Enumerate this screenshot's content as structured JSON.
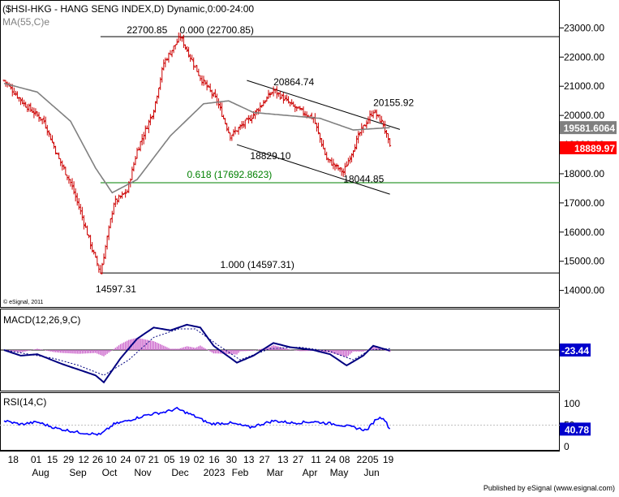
{
  "header": {
    "title": "($HSI-HKG - HANG SENG INDEX,D) Dynamic,0:00-24:00",
    "ma_label": "MA(55,C)e",
    "copyright": "© eSignal, 2011",
    "footer": "Published by eSignal (www.esignal.com)"
  },
  "colors": {
    "background": "#ffffff",
    "price_bars": "#cc0000",
    "ma_line": "#808080",
    "fib_line": "#008000",
    "macd": "#000080",
    "signal": "#000080",
    "histogram": "#cc66cc",
    "rsi": "#0000ff",
    "last_price_badge": "#ff0000",
    "ma_badge": "#808080",
    "indicator_badge": "#0000cc",
    "frame": "#000000"
  },
  "chart_data": [
    {
      "type": "bar",
      "name": "price",
      "title": "($HSI-HKG - HANG SENG INDEX,D) Dynamic,0:00-24:00",
      "ylim": [
        13600,
        23400
      ],
      "yticks": [
        "23000.00",
        "22000.00",
        "21000.00",
        "20000.00",
        "19000.00",
        "18000.00",
        "17000.00",
        "16000.00",
        "15000.00",
        "14000.00"
      ],
      "x_day_labels": [
        "18",
        "01",
        "15",
        "29",
        "12",
        "26",
        "10",
        "24",
        "07",
        "21",
        "05",
        "19",
        "02",
        "16",
        "30",
        "13",
        "27",
        "13",
        "27",
        "11",
        "24",
        "08",
        "22",
        "05",
        "19"
      ],
      "x_month_labels": [
        "Aug",
        "Sep",
        "Oct",
        "Nov",
        "Dec",
        "2023",
        "Feb",
        "Mar",
        "Apr",
        "May",
        "Jun"
      ],
      "ohlc_anchors": {
        "x_index": [
          0,
          12,
          24,
          33,
          40,
          46,
          53,
          58,
          66,
          74,
          80,
          90,
          96,
          106,
          118,
          128,
          136,
          148,
          162,
          174,
          186,
          194,
          204,
          214,
          222,
          228,
          232
        ],
        "close": [
          21200,
          20400,
          19800,
          18500,
          17700,
          16700,
          15400,
          14597.31,
          17000,
          17400,
          18800,
          20200,
          21800,
          22700.85,
          21300,
          20500,
          19300,
          19900,
          20864.74,
          20300,
          19900,
          18500,
          18044.85,
          19400,
          20155.92,
          19700,
          18889.97
        ]
      },
      "ma": {
        "label": "MA(55,C)e",
        "last_value": "19581.6064",
        "x_index": [
          0,
          20,
          40,
          55,
          65,
          80,
          100,
          120,
          135,
          150,
          170,
          190,
          210,
          232
        ],
        "values": [
          21100,
          20800,
          19800,
          18200,
          17350,
          17800,
          19300,
          20400,
          20500,
          20100,
          20000,
          19900,
          19500,
          19581.6
        ]
      },
      "last_price": "18889.97",
      "annotations": [
        {
          "text": "22700.85",
          "x_index": 104,
          "price": 22700.85
        },
        {
          "text": "0.000 (22700.85)",
          "x_index": 130,
          "price": 22700.85
        },
        {
          "text": "20864.74",
          "x_index": 162,
          "price": 20864.74
        },
        {
          "text": "20155.92",
          "x_index": 222,
          "price": 20155.92
        },
        {
          "text": "18829.10",
          "x_index": 148,
          "price": 18829.1
        },
        {
          "text": "18044.85",
          "x_index": 204,
          "price": 18044.85
        },
        {
          "text": "0.618 (17692.8623)",
          "x_index": 110,
          "price": 17692.8623
        },
        {
          "text": "1.000 (14597.31)",
          "x_index": 130,
          "price": 14597.31
        },
        {
          "text": "14597.31",
          "x_index": 58,
          "price": 14597.31
        }
      ],
      "hlines": [
        {
          "name": "fib-0",
          "price": 22700.85,
          "from_x_index": 58,
          "color": "#000000"
        },
        {
          "name": "fib-0.618",
          "price": 17692.8623,
          "from_x_index": 58,
          "color": "#008000"
        },
        {
          "name": "fib-1",
          "price": 14597.31,
          "from_x_index": 58,
          "color": "#000000"
        }
      ],
      "channel": [
        {
          "name": "upper",
          "x_index": [
            146,
            238
          ],
          "price": [
            21200,
            19520
          ]
        },
        {
          "name": "lower",
          "x_index": [
            140,
            232
          ],
          "price": [
            19000,
            17300
          ]
        }
      ]
    },
    {
      "type": "line",
      "name": "MACD",
      "label": "MACD(12,26,9,C)",
      "last_value": "-23.44",
      "ylim": [
        -1300,
        1300
      ],
      "macd": {
        "x_index": [
          0,
          10,
          20,
          35,
          45,
          55,
          60,
          70,
          80,
          90,
          100,
          110,
          118,
          126,
          140,
          150,
          162,
          172,
          186,
          196,
          206,
          216,
          222,
          232
        ],
        "values": [
          0,
          -200,
          -150,
          -500,
          -700,
          -900,
          -1150,
          -300,
          400,
          800,
          700,
          900,
          800,
          150,
          -450,
          -200,
          250,
          100,
          0,
          -150,
          -550,
          -200,
          150,
          -23.44
        ]
      },
      "signal": {
        "x_index": [
          0,
          15,
          30,
          45,
          60,
          75,
          90,
          105,
          115,
          128,
          142,
          160,
          178,
          196,
          210,
          220,
          232
        ],
        "values": [
          0,
          -150,
          -300,
          -550,
          -900,
          -350,
          450,
          750,
          750,
          200,
          -350,
          50,
          100,
          -50,
          -350,
          0,
          50
        ]
      }
    },
    {
      "type": "line",
      "name": "RSI",
      "label": "RSI(14,C)",
      "last_value": "40.78",
      "yticks": [
        "100",
        "50",
        "0"
      ],
      "ylim": [
        0,
        100
      ],
      "values": {
        "x_index": [
          0,
          10,
          20,
          32,
          45,
          58,
          66,
          74,
          86,
          96,
          104,
          114,
          124,
          136,
          148,
          162,
          174,
          186,
          200,
          210,
          218,
          224,
          228,
          232
        ],
        "values": [
          60,
          52,
          57,
          42,
          33,
          28,
          52,
          60,
          74,
          80,
          88,
          72,
          53,
          55,
          45,
          60,
          55,
          58,
          52,
          45,
          38,
          65,
          68,
          40.78
        ]
      }
    }
  ]
}
